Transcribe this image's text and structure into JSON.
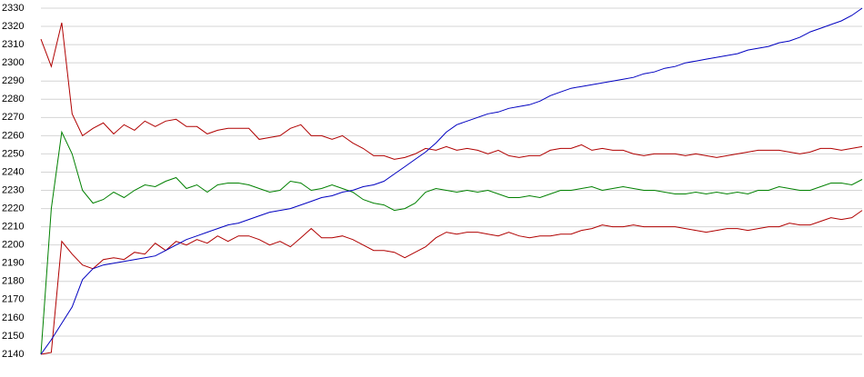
{
  "chart_data": {
    "type": "line",
    "ylim": [
      2140,
      2330
    ],
    "yticks": [
      2140,
      2150,
      2160,
      2170,
      2180,
      2190,
      2200,
      2210,
      2220,
      2230,
      2240,
      2250,
      2260,
      2270,
      2280,
      2290,
      2300,
      2310,
      2320,
      2330
    ],
    "grid": true,
    "series": [
      {
        "color": "#b00000",
        "values": [
          2313,
          2298,
          2322,
          2272,
          2260,
          2264,
          2267,
          2261,
          2266,
          2263,
          2268,
          2265,
          2268,
          2269,
          2265,
          2265,
          2261,
          2263,
          2264,
          2264,
          2264,
          2258,
          2259,
          2260,
          2264,
          2266,
          2260,
          2260,
          2258,
          2260,
          2256,
          2253,
          2249,
          2249,
          2247,
          2248,
          2250,
          2253,
          2252,
          2254,
          2252,
          2253,
          2252,
          2250,
          2252,
          2249,
          2248,
          2249,
          2249,
          2252,
          2253,
          2253,
          2255,
          2252,
          2253,
          2252,
          2252,
          2250,
          2249,
          2250,
          2250,
          2250,
          2249,
          2250,
          2249,
          2248,
          2249,
          2250,
          2251,
          2252,
          2252,
          2252,
          2251,
          2250,
          2251,
          2253,
          2253,
          2252,
          2253,
          2254
        ]
      },
      {
        "color": "#008000",
        "values": [
          2140,
          2220,
          2262,
          2250,
          2230,
          2223,
          2225,
          2229,
          2226,
          2230,
          2233,
          2232,
          2235,
          2237,
          2231,
          2233,
          2229,
          2233,
          2234,
          2234,
          2233,
          2231,
          2229,
          2230,
          2235,
          2234,
          2230,
          2231,
          2233,
          2231,
          2229,
          2225,
          2223,
          2222,
          2219,
          2220,
          2223,
          2229,
          2231,
          2230,
          2229,
          2230,
          2229,
          2230,
          2228,
          2226,
          2226,
          2227,
          2226,
          2228,
          2230,
          2230,
          2231,
          2232,
          2230,
          2231,
          2232,
          2231,
          2230,
          2230,
          2229,
          2228,
          2228,
          2229,
          2228,
          2229,
          2228,
          2229,
          2228,
          2230,
          2230,
          2232,
          2231,
          2230,
          2230,
          2232,
          2234,
          2234,
          2233,
          2236
        ]
      },
      {
        "color": "#b00000",
        "values": [
          2140,
          2141,
          2202,
          2195,
          2189,
          2187,
          2192,
          2193,
          2192,
          2196,
          2195,
          2201,
          2197,
          2202,
          2200,
          2203,
          2201,
          2205,
          2202,
          2205,
          2205,
          2203,
          2200,
          2202,
          2199,
          2204,
          2209,
          2204,
          2204,
          2205,
          2203,
          2200,
          2197,
          2197,
          2196,
          2193,
          2196,
          2199,
          2204,
          2207,
          2206,
          2207,
          2207,
          2206,
          2205,
          2207,
          2205,
          2204,
          2205,
          2205,
          2206,
          2206,
          2208,
          2209,
          2211,
          2210,
          2210,
          2211,
          2210,
          2210,
          2210,
          2210,
          2209,
          2208,
          2207,
          2208,
          2209,
          2209,
          2208,
          2209,
          2210,
          2210,
          2212,
          2211,
          2211,
          2213,
          2215,
          2214,
          2215,
          2219
        ]
      },
      {
        "color": "#0000c0",
        "values": [
          2140,
          2148,
          2157,
          2166,
          2181,
          2187,
          2189,
          2190,
          2191,
          2192,
          2193,
          2194,
          2197,
          2200,
          2203,
          2205,
          2207,
          2209,
          2211,
          2212,
          2214,
          2216,
          2218,
          2219,
          2220,
          2222,
          2224,
          2226,
          2227,
          2229,
          2230,
          2232,
          2233,
          2235,
          2239,
          2243,
          2247,
          2251,
          2256,
          2262,
          2266,
          2268,
          2270,
          2272,
          2273,
          2275,
          2276,
          2277,
          2279,
          2282,
          2284,
          2286,
          2287,
          2288,
          2289,
          2290,
          2291,
          2292,
          2294,
          2295,
          2297,
          2298,
          2300,
          2301,
          2302,
          2303,
          2304,
          2305,
          2307,
          2308,
          2309,
          2311,
          2312,
          2314,
          2317,
          2319,
          2321,
          2323,
          2326,
          2330
        ]
      }
    ]
  }
}
